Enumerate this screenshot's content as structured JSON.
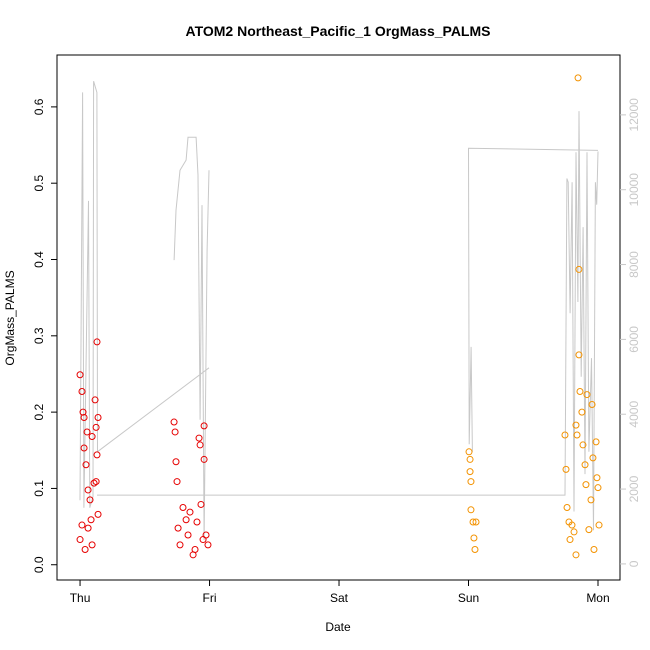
{
  "chart_data": {
    "type": "scatter",
    "title": "ATOM2 Northeast_Pacific_1 OrgMass_PALMS",
    "x_label": "Date",
    "y_label": "OrgMass_PALMS",
    "xlim": [
      -0.178,
      4.17
    ],
    "ylim": [
      -0.02,
      0.668
    ],
    "y2lim": [
      -430,
      13600
    ],
    "xticks": [
      {
        "value": 0,
        "label": "Thu"
      },
      {
        "value": 1,
        "label": "Fri"
      },
      {
        "value": 2,
        "label": "Sat"
      },
      {
        "value": 3,
        "label": "Sun"
      },
      {
        "value": 4,
        "label": "Mon"
      }
    ],
    "yticks": [
      {
        "value": 0,
        "label": "0.0"
      },
      0.1,
      0.2,
      0.3,
      0.4,
      0.5,
      0.6
    ],
    "y2ticks": [
      0,
      2000,
      4000,
      6000,
      8000,
      10000,
      12000
    ],
    "y2_color": "#c8c8c8",
    "series": [
      {
        "type": "scatter",
        "color": "#e60000",
        "x": [
          0,
          0.015,
          0.023,
          0.031,
          0.031,
          0.046,
          0.054,
          0.062,
          0.077,
          0.085,
          0.093,
          0.116,
          0.124,
          0.131,
          0.131,
          0.139,
          0.139,
          0,
          0.015,
          0.039,
          0.062,
          0.093,
          0.108,
          0.124,
          0.726,
          0.734,
          0.741,
          0.749,
          0.757,
          0.772,
          0.795,
          0.819,
          0.834,
          0.849,
          0.873,
          0.888,
          0.903,
          0.919,
          0.927,
          0.934,
          0.95,
          0.958,
          0.958,
          0.973,
          0.988
        ],
        "values": [
          0.249,
          0.227,
          0.2,
          0.193,
          0.153,
          0.131,
          0.174,
          0.098,
          0.085,
          0.059,
          0.168,
          0.216,
          0.18,
          0.292,
          0.144,
          0.193,
          0.066,
          0.033,
          0.052,
          0.02,
          0.048,
          0.026,
          0.107,
          0.109,
          0.187,
          0.174,
          0.135,
          0.109,
          0.048,
          0.026,
          0.075,
          0.059,
          0.039,
          0.069,
          0.013,
          0.02,
          0.056,
          0.166,
          0.157,
          0.079,
          0.033,
          0.182,
          0.138,
          0.039,
          0.026
        ]
      },
      {
        "type": "scatter",
        "color": "#f39200",
        "x": [
          3.004,
          3.012,
          3.012,
          3.019,
          3.019,
          3.035,
          3.042,
          3.05,
          3.058,
          3.745,
          3.753,
          3.761,
          3.776,
          3.784,
          3.799,
          3.83,
          3.838,
          3.846,
          3.853,
          3.853,
          3.861,
          3.876,
          3.884,
          3.9,
          3.907,
          3.915,
          3.93,
          3.946,
          3.954,
          3.961,
          3.969,
          3.985,
          3.992,
          4.0,
          4.008,
          3.83,
          3.815
        ],
        "values": [
          0.148,
          0.138,
          0.122,
          0.109,
          0.072,
          0.056,
          0.035,
          0.02,
          0.056,
          0.17,
          0.125,
          0.075,
          0.056,
          0.033,
          0.052,
          0.183,
          0.17,
          0.638,
          0.387,
          0.275,
          0.227,
          0.2,
          0.157,
          0.131,
          0.105,
          0.223,
          0.046,
          0.085,
          0.21,
          0.14,
          0.02,
          0.161,
          0.114,
          0.101,
          0.052,
          0.013,
          0.043
        ]
      },
      {
        "type": "line",
        "axis": "y2",
        "color": "#c8c8c8",
        "x": [
          0,
          0.02,
          0.03,
          0.065,
          0.075,
          0.1,
          0.105,
          0.13,
          0.135,
          0.996,
          null,
          0.726,
          0.741,
          0.772,
          0.819,
          0.834,
          0.896,
          0.911,
          0.927,
          0.942,
          0.958,
          0.981,
          0.996,
          null,
          0.131,
          3.745,
          3.76,
          3.77,
          3.785,
          3.8,
          3.815,
          3.83,
          3.845,
          3.853,
          3.87,
          3.885,
          3.9,
          3.915,
          3.93,
          3.95,
          3.965,
          3.98,
          3.99,
          4.0,
          null,
          3.03,
          3.02,
          3.005,
          3.0,
          4.0
        ],
        "values": [
          1700,
          12600,
          1500,
          9700,
          1500,
          1800,
          12900,
          12600,
          3000,
          5240,
          null,
          8120,
          9450,
          10520,
          10790,
          11400,
          11400,
          10390,
          3850,
          9590,
          640,
          8390,
          10520,
          null,
          1840,
          1840,
          10300,
          10200,
          6700,
          10200,
          1400,
          11000,
          7000,
          12100,
          5000,
          9000,
          2400,
          11000,
          3000,
          5500,
          900,
          10200,
          9600,
          11020,
          null,
          3000,
          5800,
          3200,
          11110,
          11050
        ]
      }
    ]
  }
}
